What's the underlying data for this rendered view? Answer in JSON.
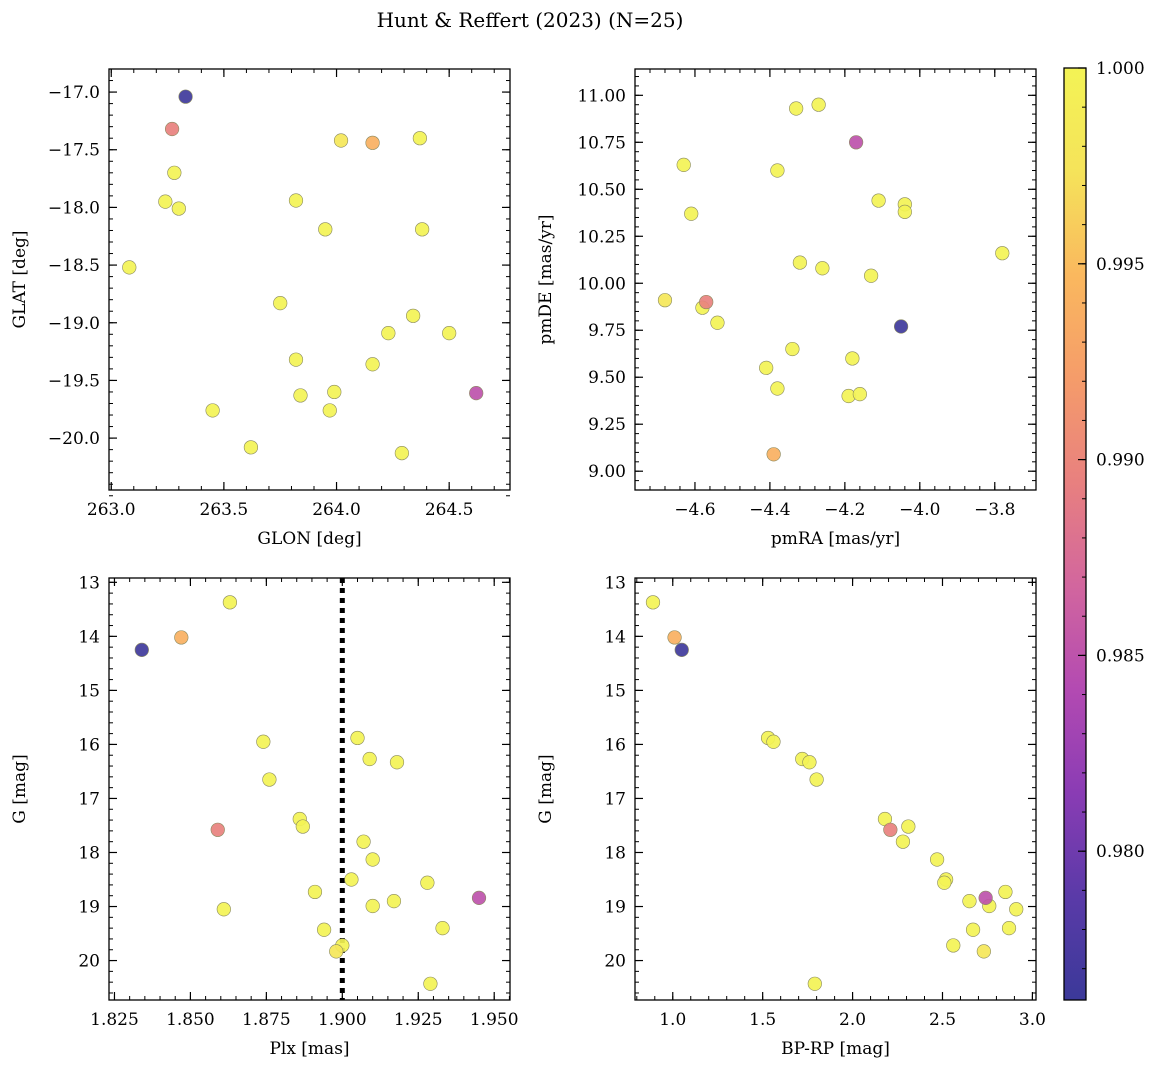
{
  "figure": {
    "title": "Hunt & Reffert (2023) (N=25)"
  },
  "colorbar": {
    "label": "",
    "colormap": "plasma",
    "range": [
      0.9762,
      1.0
    ],
    "ticks": [
      0.98,
      0.985,
      0.99,
      0.995,
      1.0
    ],
    "tick_labels": [
      "0.980",
      "0.985",
      "0.990",
      "0.995",
      "1.000"
    ],
    "colors": [
      "#3b3999",
      "#5a3aa8",
      "#8a3cb4",
      "#b34ab2",
      "#d2669e",
      "#e8807f",
      "#f59c6a",
      "#fab85e",
      "#f5e35a",
      "#f3f355"
    ]
  },
  "chart_data": [
    {
      "type": "scatter",
      "panel": "top-left",
      "title": "",
      "xlabel": "GLON [deg]",
      "ylabel": "GLAT [deg]",
      "xlim": [
        262.99,
        264.77
      ],
      "ylim": [
        -20.45,
        -16.8
      ],
      "y_inverted": false,
      "xticks": [
        263.0,
        263.5,
        264.0,
        264.5
      ],
      "xtick_labels": [
        "263.0",
        "263.5",
        "264.0",
        "264.5"
      ],
      "yticks": [
        -17.0,
        -17.5,
        -18.0,
        -18.5,
        -19.0,
        -19.5,
        -20.0
      ],
      "ytick_labels": [
        "−17.0",
        "−17.5",
        "−18.0",
        "−18.5",
        "−19.0",
        "−19.5",
        "−20.0"
      ],
      "x": [
        263.33,
        263.27,
        263.28,
        263.24,
        263.3,
        263.08,
        264.02,
        264.16,
        264.37,
        263.82,
        263.95,
        264.38,
        263.75,
        263.82,
        264.34,
        264.23,
        264.5,
        264.16,
        263.99,
        263.84,
        264.62,
        263.45,
        263.97,
        263.62,
        264.29
      ],
      "y": [
        -17.04,
        -17.32,
        -17.7,
        -17.95,
        -18.01,
        -18.52,
        -17.42,
        -17.44,
        -17.4,
        -17.94,
        -18.19,
        -18.19,
        -18.83,
        -19.32,
        -18.94,
        -19.09,
        -19.09,
        -19.36,
        -19.6,
        -19.63,
        -19.61,
        -19.76,
        -19.76,
        -20.08,
        -20.13
      ],
      "prob": [
        0.9765,
        0.9895,
        1.0,
        1.0,
        1.0,
        1.0,
        0.998,
        0.994,
        1.0,
        1.0,
        1.0,
        1.0,
        1.0,
        1.0,
        1.0,
        1.0,
        1.0,
        1.0,
        1.0,
        1.0,
        0.985,
        1.0,
        1.0,
        1.0,
        1.0
      ]
    },
    {
      "type": "scatter",
      "panel": "top-right",
      "title": "",
      "xlabel": "pmRA [mas/yr]",
      "ylabel": "pmDE [mas/yr]",
      "xlim": [
        -4.76,
        -3.69
      ],
      "ylim": [
        8.9,
        11.14
      ],
      "y_inverted": false,
      "xticks": [
        -4.6,
        -4.4,
        -4.2,
        -4.0,
        -3.8
      ],
      "xtick_labels": [
        "−4.6",
        "−4.4",
        "−4.2",
        "−4.0",
        "−3.8"
      ],
      "yticks": [
        9.0,
        9.25,
        9.5,
        9.75,
        10.0,
        10.25,
        10.5,
        10.75,
        11.0
      ],
      "ytick_labels": [
        "9.00",
        "9.25",
        "9.50",
        "9.75",
        "10.00",
        "10.25",
        "10.50",
        "10.75",
        "11.00"
      ],
      "x": [
        -4.27,
        -4.33,
        -4.17,
        -4.63,
        -4.38,
        -4.61,
        -4.11,
        -4.04,
        -4.04,
        -4.32,
        -4.26,
        -3.78,
        -4.13,
        -4.68,
        -4.57,
        -4.58,
        -4.54,
        -4.05,
        -4.34,
        -4.18,
        -4.41,
        -4.38,
        -4.19,
        -4.16,
        -4.39
      ],
      "y": [
        10.95,
        10.93,
        10.75,
        10.63,
        10.6,
        10.37,
        10.44,
        10.42,
        10.38,
        10.11,
        10.08,
        10.16,
        10.04,
        9.91,
        9.9,
        9.87,
        9.79,
        9.77,
        9.65,
        9.6,
        9.55,
        9.44,
        9.4,
        9.41,
        9.09
      ],
      "prob": [
        1.0,
        1.0,
        0.985,
        1.0,
        1.0,
        1.0,
        1.0,
        1.0,
        1.0,
        1.0,
        1.0,
        1.0,
        1.0,
        0.998,
        0.9895,
        1.0,
        1.0,
        0.9765,
        1.0,
        1.0,
        1.0,
        1.0,
        1.0,
        1.0,
        0.994
      ]
    },
    {
      "type": "scatter",
      "panel": "bottom-left",
      "title": "",
      "xlabel": "Plx [mas]",
      "ylabel": "G [mag]",
      "xlim": [
        1.8232,
        1.9552
      ],
      "ylim": [
        20.73,
        12.92
      ],
      "y_inverted": true,
      "xticks": [
        1.825,
        1.85,
        1.875,
        1.9,
        1.925,
        1.95
      ],
      "xtick_labels": [
        "1.825",
        "1.850",
        "1.875",
        "1.900",
        "1.925",
        "1.950"
      ],
      "yticks": [
        13,
        14,
        15,
        16,
        17,
        18,
        19,
        20
      ],
      "ytick_labels": [
        "13",
        "14",
        "15",
        "16",
        "17",
        "18",
        "19",
        "20"
      ],
      "vline": 1.9,
      "x": [
        1.863,
        1.847,
        1.834,
        1.874,
        1.905,
        1.876,
        1.909,
        1.918,
        1.886,
        1.887,
        1.907,
        1.91,
        1.859,
        1.903,
        1.928,
        1.91,
        1.917,
        1.891,
        1.861,
        1.945,
        1.894,
        1.933,
        1.9,
        1.898,
        1.929
      ],
      "y": [
        13.37,
        14.02,
        14.25,
        15.95,
        15.88,
        16.65,
        16.27,
        16.33,
        17.38,
        17.52,
        17.8,
        18.13,
        17.58,
        18.5,
        18.56,
        18.99,
        18.9,
        18.73,
        19.05,
        18.84,
        19.43,
        19.4,
        19.72,
        19.83,
        20.43
      ],
      "prob": [
        1.0,
        0.994,
        0.9765,
        1.0,
        1.0,
        1.0,
        1.0,
        1.0,
        1.0,
        1.0,
        1.0,
        1.0,
        0.9895,
        1.0,
        1.0,
        1.0,
        1.0,
        1.0,
        1.0,
        0.985,
        1.0,
        1.0,
        1.0,
        0.998,
        1.0
      ]
    },
    {
      "type": "scatter",
      "panel": "bottom-right",
      "title": "",
      "xlabel": "BP-RP [mag]",
      "ylabel": "G [mag]",
      "xlim": [
        0.79,
        3.02
      ],
      "ylim": [
        20.73,
        12.92
      ],
      "y_inverted": true,
      "xticks": [
        1.0,
        1.5,
        2.0,
        2.5,
        3.0
      ],
      "xtick_labels": [
        "1.0",
        "1.5",
        "2.0",
        "2.5",
        "3.0"
      ],
      "yticks": [
        13,
        14,
        15,
        16,
        17,
        18,
        19,
        20
      ],
      "ytick_labels": [
        "13",
        "14",
        "15",
        "16",
        "17",
        "18",
        "19",
        "20"
      ],
      "x": [
        0.89,
        1.01,
        1.05,
        1.53,
        1.56,
        1.72,
        1.76,
        1.8,
        2.18,
        2.21,
        2.31,
        2.28,
        2.47,
        2.52,
        2.51,
        2.74,
        2.76,
        2.85,
        2.91,
        2.65,
        2.67,
        2.87,
        2.56,
        2.73,
        1.79
      ],
      "y": [
        13.37,
        14.02,
        14.25,
        15.88,
        15.95,
        16.27,
        16.33,
        16.65,
        17.38,
        17.58,
        17.52,
        17.8,
        18.13,
        18.5,
        18.56,
        18.84,
        18.99,
        18.73,
        19.05,
        18.9,
        19.43,
        19.4,
        19.72,
        19.83,
        20.43
      ],
      "prob": [
        1.0,
        0.994,
        0.9765,
        1.0,
        1.0,
        1.0,
        1.0,
        1.0,
        1.0,
        0.9895,
        1.0,
        1.0,
        1.0,
        1.0,
        1.0,
        0.985,
        1.0,
        1.0,
        1.0,
        1.0,
        1.0,
        1.0,
        1.0,
        0.998,
        1.0
      ]
    }
  ]
}
